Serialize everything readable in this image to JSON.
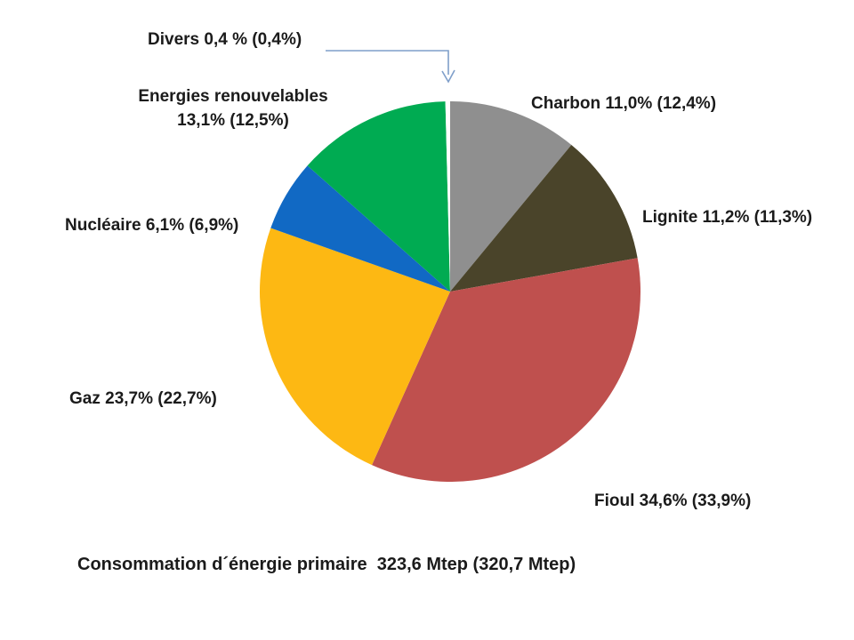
{
  "chart_data": {
    "type": "pie",
    "caption": "Consommation d´énergie primaire  323,6 Mtep (320,7 Mtep)",
    "start_angle_deg": 0,
    "direction": "clockwise",
    "legend_position": "labels-outside",
    "grid": false,
    "slices": [
      {
        "name": "charbon",
        "label": "Charbon 11,0% (12,4%)",
        "value_pct": 11.0,
        "prev_value_pct": 12.4,
        "color": "#8F8F8F"
      },
      {
        "name": "lignite",
        "label": "Lignite 11,2% (11,3%)",
        "value_pct": 11.2,
        "prev_value_pct": 11.3,
        "color": "#4A442A"
      },
      {
        "name": "fioul",
        "label": "Fioul 34,6% (33,9%)",
        "value_pct": 34.6,
        "prev_value_pct": 33.9,
        "color": "#BF504E"
      },
      {
        "name": "gaz",
        "label": "Gaz 23,7% (22,7%)",
        "value_pct": 23.7,
        "prev_value_pct": 22.7,
        "color": "#FDB813"
      },
      {
        "name": "nucleaire",
        "label": "Nucléaire 6,1% (6,9%)",
        "value_pct": 6.1,
        "prev_value_pct": 6.9,
        "color": "#1169C4"
      },
      {
        "name": "energies-renouvelables",
        "label_line1": "Energies renouvelables",
        "label_line2": "13,1% (12,5%)",
        "value_pct": 13.1,
        "prev_value_pct": 12.5,
        "color": "#00AB52"
      },
      {
        "name": "divers",
        "label": "Divers 0,4 % (0,4%)",
        "value_pct": 0.4,
        "prev_value_pct": 0.4,
        "color": "#FFFFFF"
      }
    ]
  }
}
